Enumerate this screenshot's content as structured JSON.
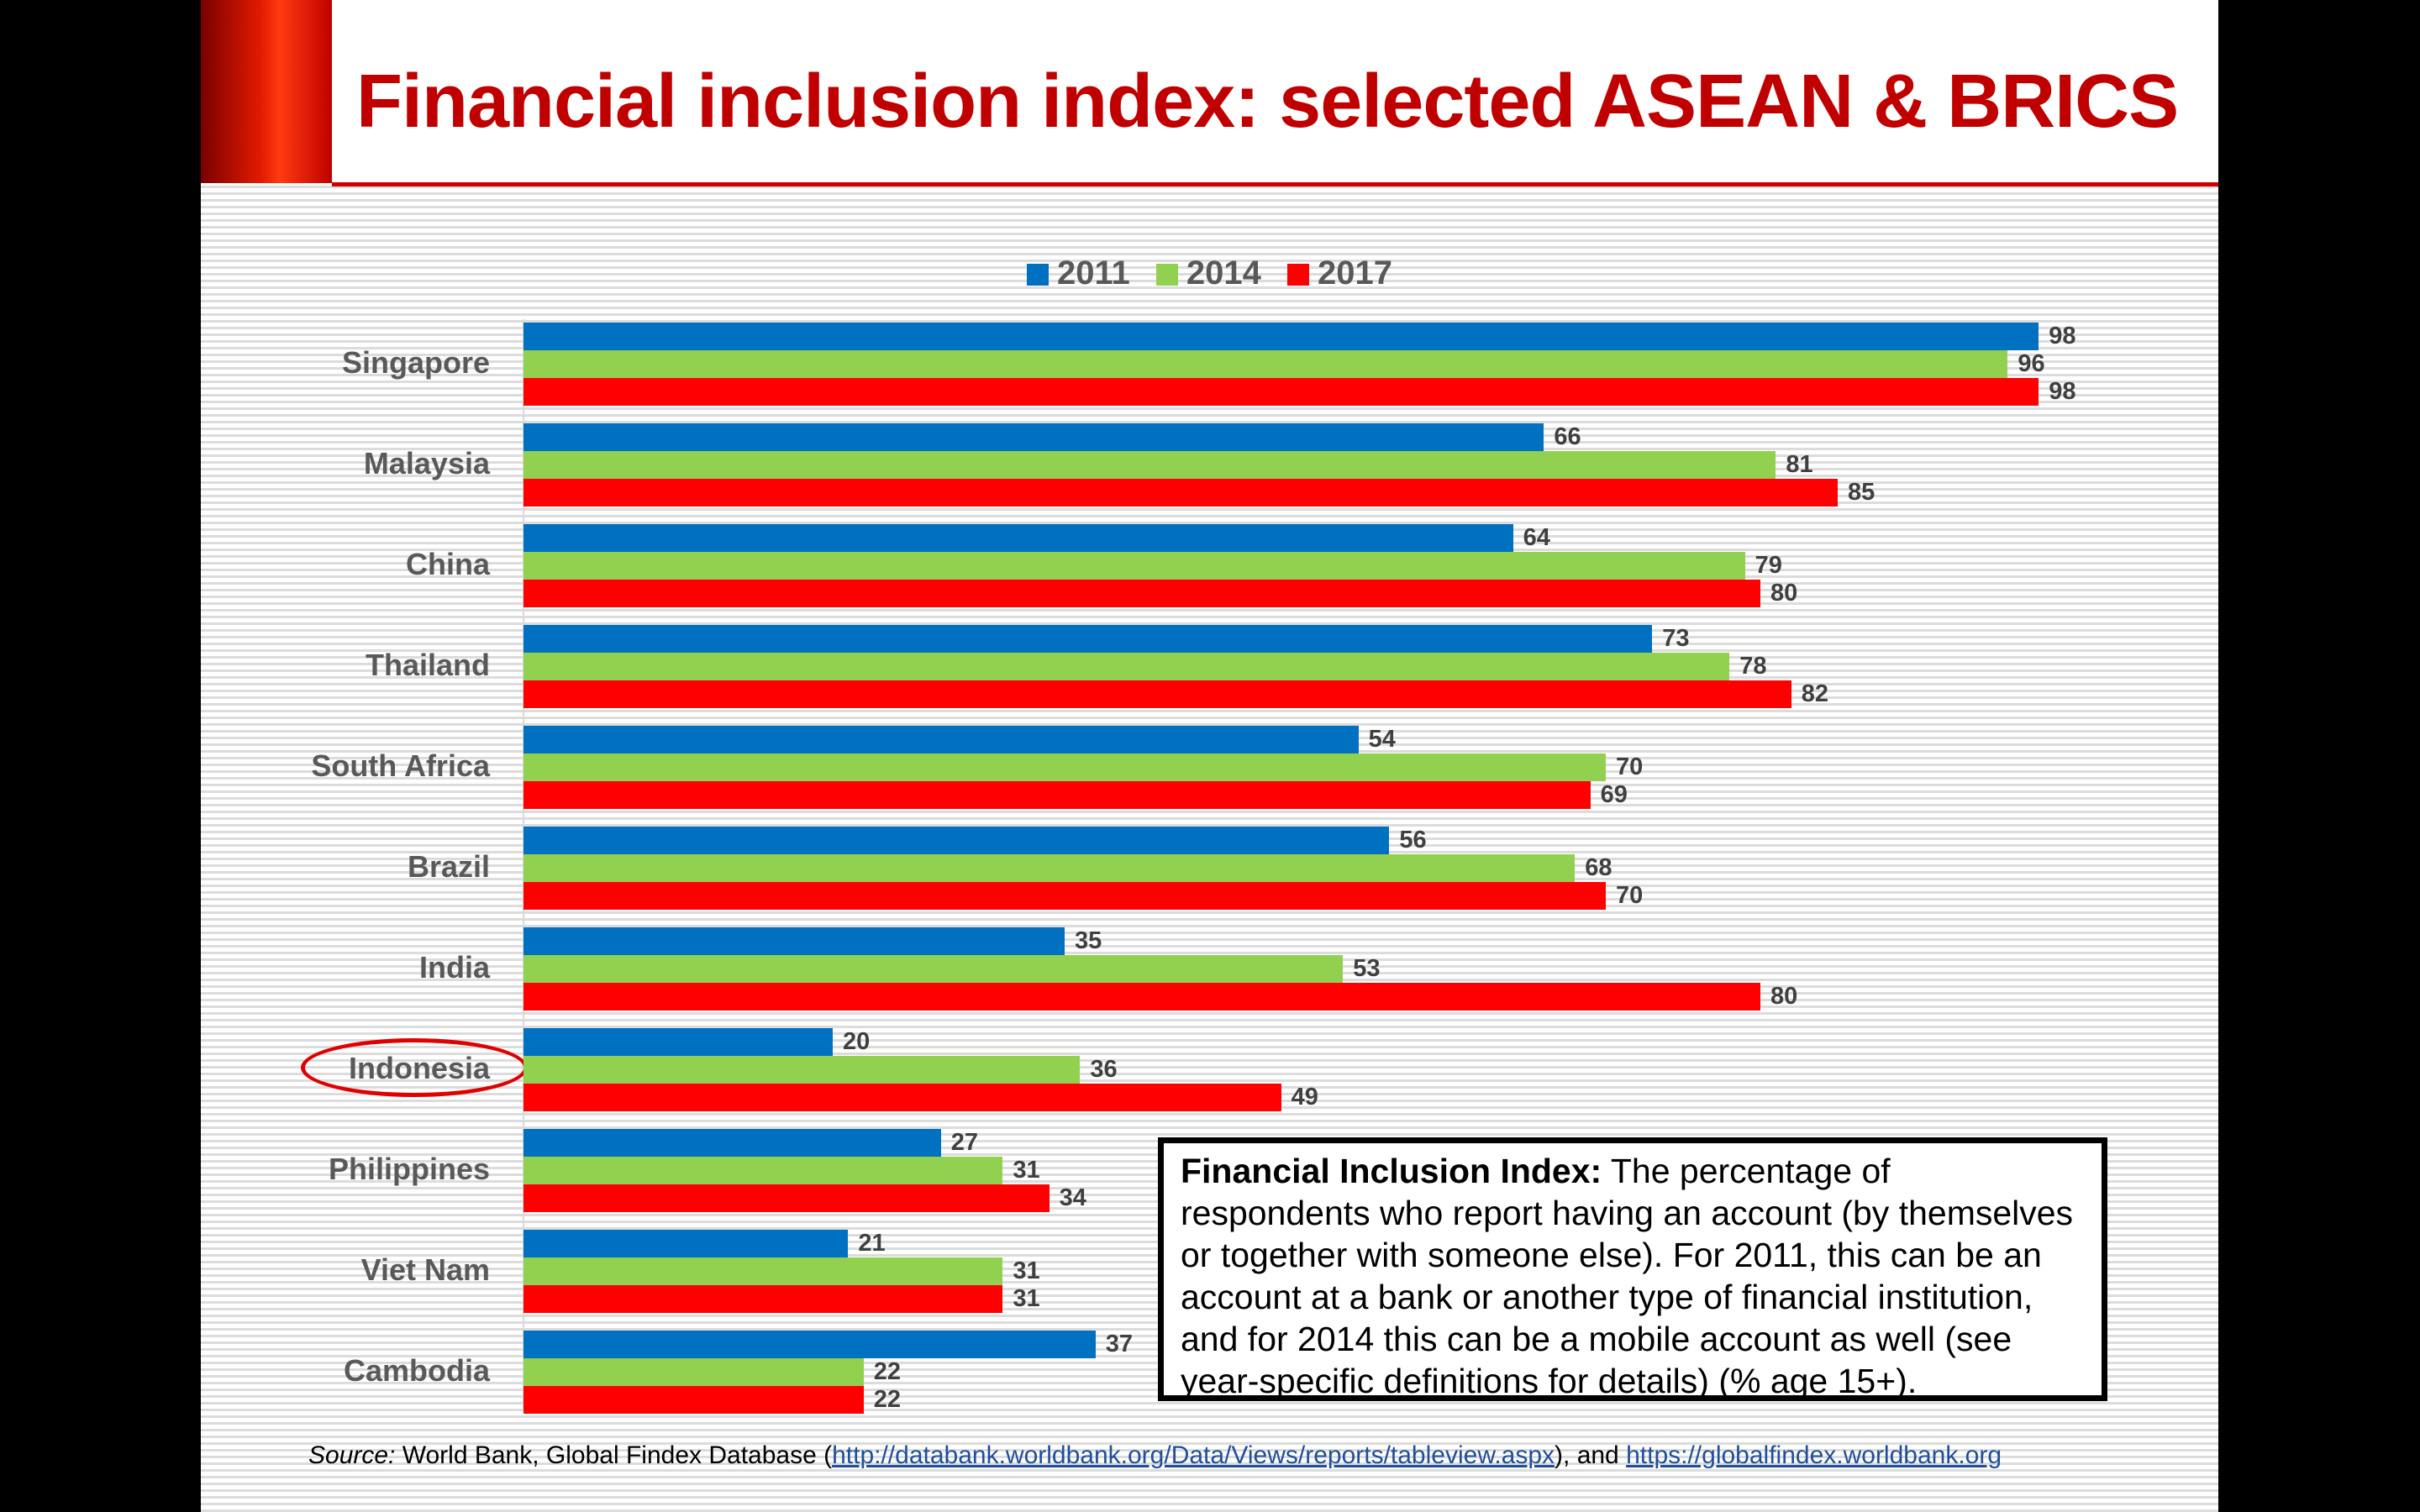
{
  "title": "Financial inclusion index: selected ASEAN & BRICS",
  "chart_data": {
    "type": "bar",
    "orientation": "horizontal",
    "categories": [
      "Singapore",
      "Malaysia",
      "China",
      "Thailand",
      "South Africa",
      "Brazil",
      "India",
      "Indonesia",
      "Philippines",
      "Viet Nam",
      "Cambodia"
    ],
    "series": [
      {
        "name": "2011",
        "color": "#0070c0",
        "values": [
          98,
          66,
          64,
          73,
          54,
          56,
          35,
          20,
          27,
          21,
          37
        ]
      },
      {
        "name": "2014",
        "color": "#92d050",
        "values": [
          96,
          81,
          79,
          78,
          70,
          68,
          53,
          36,
          31,
          31,
          22
        ]
      },
      {
        "name": "2017",
        "color": "#ff0000",
        "values": [
          98,
          85,
          80,
          82,
          69,
          70,
          80,
          49,
          34,
          31,
          22
        ]
      }
    ],
    "xlim": [
      0,
      100
    ],
    "legend": "top",
    "highlighted_category": "Indonesia",
    "grid": false
  },
  "definition": {
    "term": "Financial Inclusion Index:",
    "text": " The percentage of respondents who report having an account (by themselves or together with someone else). For 2011, this can be an account at a bank or another type of financial institution, and for 2014 this can be a mobile account as well (see year-specific definitions for details) (% age 15+)."
  },
  "source": {
    "label": "Source:",
    "text1": " World Bank, Global Findex Database (",
    "link1": "http://databank.worldbank.org/Data/Views/reports/tableview.aspx",
    "text2": "), and ",
    "link2": "https://globalfindex.worldbank.org"
  }
}
